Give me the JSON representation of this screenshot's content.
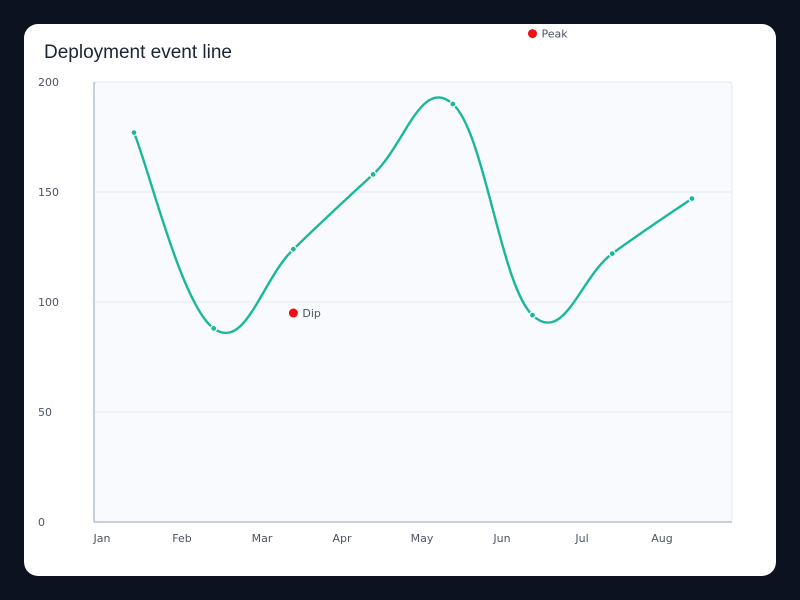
{
  "chart_data": {
    "type": "line",
    "title": "Deployment event line",
    "xlabel": "",
    "ylabel": "",
    "categories": [
      "Jan",
      "Feb",
      "Mar",
      "Apr",
      "May",
      "Jun",
      "Jul",
      "Aug"
    ],
    "ylim": [
      0,
      200
    ],
    "yticks": [
      0,
      50,
      100,
      150,
      200
    ],
    "grid": true,
    "series": [
      {
        "x": [
          "Jan",
          "Feb",
          "Mar",
          "Apr",
          "May",
          "Jun",
          "Jul",
          "Aug"
        ],
        "values": [
          177,
          88,
          124,
          158,
          190,
          94,
          122,
          147
        ],
        "color": "#1ab89a"
      }
    ],
    "annotations": [
      {
        "label": "Dip",
        "x": "Mar",
        "y": 95,
        "color": "#ee1111"
      },
      {
        "label": "Peak",
        "x": "Jun",
        "y": 222,
        "color": "#ee1111"
      }
    ]
  }
}
